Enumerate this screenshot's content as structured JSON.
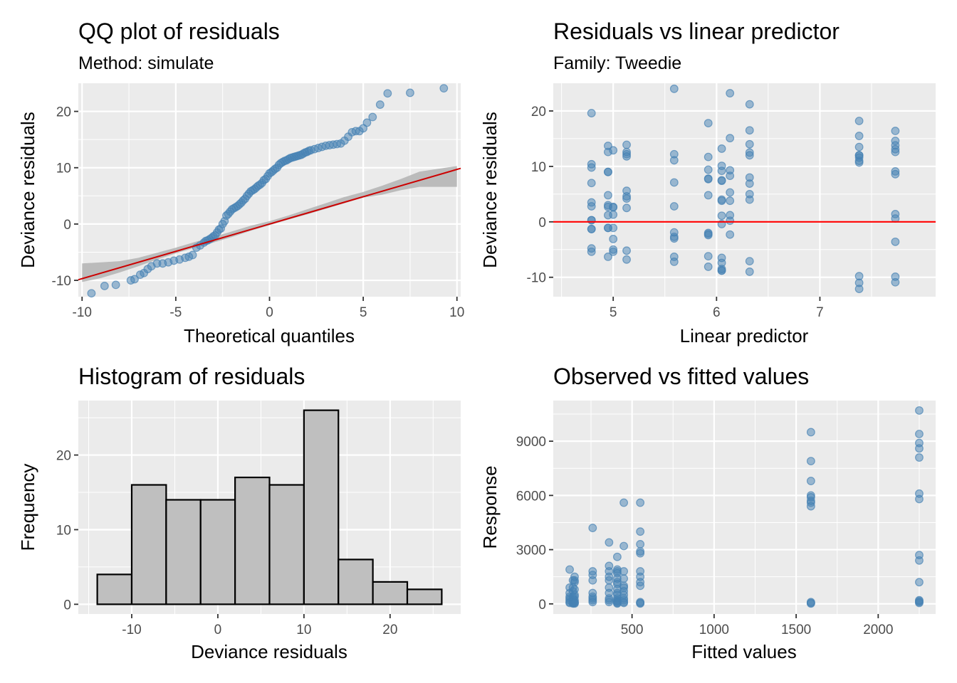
{
  "colors": {
    "panel_bg": "#ebebeb",
    "grid_major": "#ffffff",
    "point": "#4682b4",
    "ref_line": "#ff0000",
    "qq_line": "#cc0000",
    "band": "#b3b3b3",
    "bar_fill": "#bfbfbf",
    "bar_stroke": "#000000"
  },
  "chart_data": [
    {
      "id": "qq",
      "type": "scatter",
      "title": "QQ plot of residuals",
      "subtitle": "Method: simulate",
      "xlabel": "Theoretical quantiles",
      "ylabel": "Deviance residuals",
      "xlim": [
        -10.2,
        10.2
      ],
      "ylim": [
        -12.9,
        25.0
      ],
      "xticks": [
        -10,
        -5,
        0,
        5,
        10
      ],
      "yticks": [
        -10,
        0,
        10,
        20
      ],
      "xtick_labels": [
        "-10",
        "-5",
        "0",
        "5",
        "10"
      ],
      "ytick_labels": [
        "-10",
        "0",
        "10",
        "20"
      ],
      "grid": true,
      "reference_line": {
        "intercept": 0.0,
        "slope": 0.97
      },
      "band": {
        "x": [
          -10,
          -9,
          -8,
          -7,
          -6,
          -5,
          -4,
          -3,
          -2,
          -1,
          0,
          1,
          2,
          3,
          4,
          5,
          6,
          7,
          8,
          9,
          10
        ],
        "lower": [
          -10.3,
          -9.6,
          -8.6,
          -7.5,
          -6.3,
          -5.2,
          -4.2,
          -3.3,
          -2.3,
          -1.2,
          -0.2,
          0.8,
          1.7,
          2.7,
          3.7,
          4.7,
          5.2,
          6.0,
          6.6,
          6.6,
          6.6
        ],
        "upper": [
          -7.0,
          -6.8,
          -6.6,
          -6.0,
          -5.1,
          -4.2,
          -3.2,
          -2.3,
          -1.3,
          -0.3,
          0.5,
          1.5,
          2.6,
          3.7,
          4.8,
          5.7,
          6.8,
          8.0,
          9.3,
          9.8,
          10.3
        ]
      },
      "points": {
        "x": [
          -9.5,
          -8.8,
          -8.2,
          -7.4,
          -7.2,
          -6.9,
          -6.7,
          -6.5,
          -6.3,
          -6.0,
          -5.7,
          -5.4,
          -5.1,
          -4.8,
          -4.5,
          -4.3,
          -4.1,
          -3.9,
          -3.7,
          -3.5,
          -3.4,
          -3.3,
          -3.2,
          -3.1,
          -3.0,
          -2.9,
          -2.8,
          -2.7,
          -2.6,
          -2.5,
          -2.4,
          -2.3,
          -2.2,
          -2.1,
          -2.0,
          -1.9,
          -1.8,
          -1.7,
          -1.6,
          -1.5,
          -1.4,
          -1.3,
          -1.2,
          -1.1,
          -1.0,
          -0.9,
          -0.8,
          -0.7,
          -0.6,
          -0.5,
          -0.4,
          -0.3,
          -0.2,
          -0.1,
          0.0,
          0.1,
          0.2,
          0.3,
          0.4,
          0.5,
          0.6,
          0.7,
          0.8,
          0.9,
          1.0,
          1.1,
          1.2,
          1.3,
          1.4,
          1.5,
          1.6,
          1.7,
          1.8,
          1.9,
          2.0,
          2.1,
          2.2,
          2.4,
          2.6,
          2.8,
          3.0,
          3.2,
          3.4,
          3.6,
          3.8,
          4.0,
          4.2,
          4.4,
          4.6,
          4.8,
          5.0,
          5.2,
          5.5,
          5.9,
          6.3,
          7.5,
          9.3
        ],
        "y": [
          -12.3,
          -11.0,
          -10.8,
          -10.0,
          -9.8,
          -9.0,
          -8.7,
          -8.0,
          -7.5,
          -7.0,
          -7.0,
          -6.8,
          -6.5,
          -6.3,
          -6.0,
          -5.8,
          -5.5,
          -4.2,
          -3.8,
          -3.3,
          -3.0,
          -2.9,
          -2.7,
          -2.5,
          -2.2,
          -2.0,
          -1.5,
          -1.0,
          -0.8,
          0.0,
          0.5,
          1.5,
          1.8,
          2.2,
          2.6,
          2.8,
          3.0,
          3.2,
          3.5,
          3.8,
          4.2,
          4.5,
          5.0,
          5.4,
          5.8,
          6.0,
          6.2,
          6.5,
          6.8,
          7.0,
          7.3,
          7.8,
          8.0,
          8.5,
          9.0,
          9.2,
          9.5,
          9.8,
          10.0,
          10.5,
          10.8,
          11.0,
          11.2,
          11.3,
          11.5,
          11.7,
          11.8,
          11.9,
          12.0,
          12.1,
          12.2,
          12.3,
          12.5,
          12.7,
          12.8,
          13.0,
          13.1,
          13.3,
          13.5,
          13.7,
          13.9,
          14.0,
          14.1,
          14.2,
          14.3,
          14.8,
          15.5,
          16.3,
          16.5,
          16.5,
          17.0,
          18.0,
          19.0,
          21.2,
          23.2,
          23.3,
          24.1
        ]
      }
    },
    {
      "id": "rvl",
      "type": "scatter",
      "title": "Residuals vs linear predictor",
      "subtitle": "Family: Tweedie",
      "xlabel": "Linear predictor",
      "ylabel": "Deviance residuals",
      "xlim": [
        4.42,
        8.12
      ],
      "ylim": [
        -13.5,
        25.0
      ],
      "xticks": [
        5,
        6,
        7
      ],
      "yticks": [
        -10,
        0,
        10,
        20
      ],
      "xtick_labels": [
        "5",
        "6",
        "7"
      ],
      "ytick_labels": [
        "-10",
        "0",
        "10",
        "20"
      ],
      "grid": true,
      "reference_line": {
        "intercept": 0.0,
        "slope": 0.0
      },
      "points": {
        "x": [
          4.79,
          4.79,
          4.79,
          4.79,
          4.79,
          4.79,
          4.79,
          4.79,
          4.79,
          4.79,
          4.79,
          4.79,
          4.95,
          4.95,
          4.95,
          4.95,
          4.95,
          4.95,
          4.95,
          4.95,
          4.95,
          4.95,
          4.95,
          5.0,
          5.0,
          5.0,
          5.0,
          5.0,
          5.0,
          5.0,
          5.0,
          5.13,
          5.13,
          5.13,
          5.13,
          5.13,
          5.13,
          5.13,
          5.13,
          5.13,
          5.13,
          5.59,
          5.59,
          5.59,
          5.59,
          5.59,
          5.59,
          5.59,
          5.59,
          5.59,
          5.59,
          5.92,
          5.92,
          5.92,
          5.92,
          5.92,
          5.92,
          5.92,
          5.92,
          5.92,
          5.92,
          5.92,
          6.05,
          6.05,
          6.05,
          6.05,
          6.05,
          6.05,
          6.05,
          6.05,
          6.05,
          6.05,
          6.05,
          6.05,
          6.05,
          6.05,
          6.13,
          6.13,
          6.13,
          6.13,
          6.13,
          6.13,
          6.13,
          6.13,
          6.13,
          6.32,
          6.32,
          6.32,
          6.32,
          6.32,
          6.32,
          6.32,
          6.32,
          6.32,
          6.32,
          6.32,
          7.38,
          7.38,
          7.38,
          7.38,
          7.38,
          7.38,
          7.38,
          7.38,
          7.38,
          7.38,
          7.38,
          7.73,
          7.73,
          7.73,
          7.73,
          7.73,
          7.73,
          7.73,
          7.73,
          7.73,
          7.73,
          7.73,
          7.73
        ],
        "y": [
          19.6,
          10.4,
          9.8,
          7.0,
          3.5,
          2.8,
          0.3,
          -1.3,
          -4.8,
          -5.4,
          -1.3,
          0.3,
          13.7,
          12.6,
          9.0,
          9.0,
          4.8,
          3.0,
          2.7,
          1.2,
          -1.1,
          -1.1,
          -6.3,
          12.9,
          2.7,
          2.6,
          1.3,
          -1.1,
          -3.1,
          -5.0,
          -5.4,
          13.9,
          12.6,
          12.2,
          11.8,
          5.6,
          4.6,
          4.2,
          2.5,
          -5.2,
          -6.8,
          24.0,
          12.2,
          11.1,
          7.1,
          2.8,
          -1.9,
          -2.7,
          -3.0,
          -6.3,
          -7.2,
          17.8,
          11.7,
          9.4,
          7.8,
          4.8,
          -2.0,
          -2.2,
          -2.4,
          -6.2,
          -8.1,
          7.7,
          13.2,
          10.1,
          9.2,
          7.5,
          7.4,
          4.0,
          3.8,
          1.1,
          -0.4,
          -6.5,
          -7.4,
          -8.5,
          -8.8,
          -8.8,
          0.2,
          23.2,
          15.1,
          9.3,
          8.3,
          5.3,
          3.8,
          1.2,
          -2.3,
          21.2,
          16.5,
          14.0,
          12.5,
          12.0,
          8.0,
          6.9,
          5.0,
          4.0,
          -7.1,
          -9.0,
          18.2,
          15.5,
          13.5,
          12.0,
          11.6,
          11.0,
          10.7,
          -9.8,
          -11.0,
          -12.1,
          12.0,
          16.4,
          14.6,
          13.8,
          13.1,
          9.1,
          8.6,
          1.4,
          0.6,
          -3.6,
          -9.9,
          -10.9,
          12.6
        ]
      }
    },
    {
      "id": "hist",
      "type": "bar",
      "title": "Histogram of residuals",
      "xlabel": "Deviance residuals",
      "ylabel": "Frequency",
      "xlim": [
        -16.2,
        28.2
      ],
      "ylim": [
        -1.3,
        27.3
      ],
      "xticks": [
        -10,
        0,
        10,
        20
      ],
      "yticks": [
        0,
        10,
        20
      ],
      "xtick_labels": [
        "-10",
        "0",
        "10",
        "20"
      ],
      "ytick_labels": [
        "0",
        "10",
        "20"
      ],
      "grid": true,
      "bin_edges": [
        -14,
        -10,
        -6,
        -2,
        2,
        6,
        10,
        14,
        18,
        22,
        26
      ],
      "values": [
        4,
        16,
        14,
        14,
        17,
        16,
        26,
        6,
        3,
        2
      ]
    },
    {
      "id": "ovf",
      "type": "scatter",
      "title": "Observed vs fitted values",
      "xlabel": "Fitted values",
      "ylabel": "Response",
      "xlim": [
        20,
        2350
      ],
      "ylim": [
        -560,
        11250
      ],
      "xticks": [
        500,
        1000,
        1500,
        2000
      ],
      "yticks": [
        0,
        3000,
        6000,
        9000
      ],
      "xtick_labels": [
        "500",
        "1000",
        "1500",
        "2000"
      ],
      "ytick_labels": [
        "0",
        "3000",
        "6000",
        "9000"
      ],
      "grid": true,
      "points": {
        "x": [
          120,
          120,
          120,
          120,
          120,
          120,
          120,
          120,
          140,
          140,
          140,
          140,
          140,
          140,
          140,
          140,
          140,
          150,
          150,
          150,
          150,
          150,
          150,
          150,
          150,
          150,
          150,
          260,
          260,
          260,
          260,
          260,
          260,
          260,
          260,
          260,
          360,
          360,
          360,
          360,
          360,
          360,
          360,
          360,
          360,
          360,
          410,
          410,
          410,
          410,
          410,
          410,
          410,
          410,
          410,
          410,
          410,
          410,
          410,
          410,
          410,
          410,
          450,
          450,
          450,
          450,
          450,
          450,
          450,
          450,
          450,
          450,
          450,
          450,
          550,
          550,
          550,
          550,
          550,
          550,
          550,
          550,
          550,
          550,
          550,
          550,
          1590,
          1590,
          1590,
          1590,
          1590,
          1590,
          1590,
          1590,
          1590,
          1590,
          1590,
          2250,
          2250,
          2250,
          2250,
          2250,
          2250,
          2250,
          2250,
          2250,
          2250,
          2250,
          2250,
          2250,
          2250
        ],
        "y": [
          1900,
          900,
          600,
          400,
          300,
          200,
          100,
          50,
          1300,
          900,
          700,
          400,
          300,
          200,
          100,
          50,
          20,
          1500,
          1300,
          1200,
          800,
          500,
          400,
          200,
          100,
          50,
          20,
          4200,
          1800,
          1600,
          1300,
          600,
          400,
          300,
          200,
          100,
          3400,
          2100,
          1800,
          1500,
          1300,
          900,
          600,
          300,
          200,
          100,
          2600,
          1900,
          1800,
          1700,
          1400,
          1200,
          1100,
          800,
          600,
          500,
          300,
          200,
          150,
          100,
          50,
          20,
          5600,
          3200,
          1800,
          1400,
          1000,
          900,
          700,
          500,
          300,
          200,
          100,
          50,
          5600,
          4000,
          3300,
          2900,
          2800,
          1800,
          1500,
          1200,
          1000,
          100,
          50,
          20,
          9500,
          7900,
          6800,
          6000,
          5900,
          5700,
          5600,
          5400,
          100,
          50,
          20,
          10700,
          9400,
          8900,
          8600,
          8100,
          6100,
          5800,
          2700,
          2400,
          1200,
          200,
          150,
          100,
          50
        ]
      }
    }
  ]
}
